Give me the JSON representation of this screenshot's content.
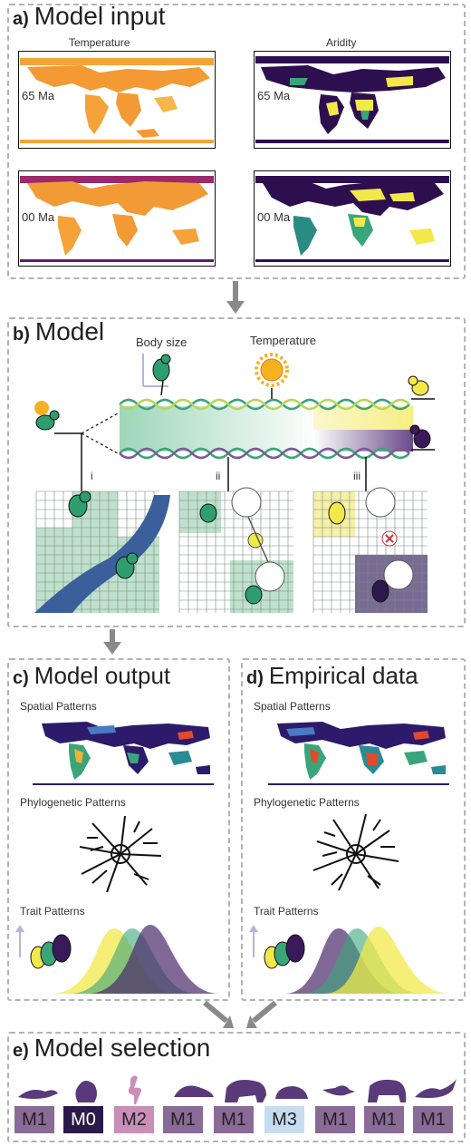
{
  "panel_a": {
    "letter": "a)",
    "title": "Model input",
    "col_left": "Temperature",
    "col_right": "Aridity",
    "time_top": "65 Ma",
    "time_bottom": "00 Ma"
  },
  "panel_b": {
    "letter": "b)",
    "title": "Model",
    "label_body_size": "Body size",
    "label_temperature": "Temperature",
    "roman": [
      "i",
      "ii",
      "iii"
    ]
  },
  "panel_c": {
    "letter": "c)",
    "title": "Model output",
    "spatial": "Spatial Patterns",
    "phylo": "Phylogenetic Patterns",
    "trait": "Trait Patterns"
  },
  "panel_d": {
    "letter": "d)",
    "title": "Empirical data",
    "spatial": "Spatial Patterns",
    "phylo": "Phylogenetic Patterns",
    "trait": "Trait Patterns"
  },
  "panel_e": {
    "letter": "e)",
    "title": "Model selection",
    "models": [
      {
        "label": "M1",
        "icon": "lizard-icon",
        "color": "#8a6a96"
      },
      {
        "label": "M0",
        "icon": "squirrel-icon",
        "color": "#2a1a4a"
      },
      {
        "label": "M2",
        "icon": "flamingo-icon",
        "color": "#c98fb8"
      },
      {
        "label": "M1",
        "icon": "turtle-icon",
        "color": "#8a6a96"
      },
      {
        "label": "M1",
        "icon": "elephant-icon",
        "color": "#8a6a96"
      },
      {
        "label": "M3",
        "icon": "rodent-icon",
        "color": "#c6dcf0"
      },
      {
        "label": "M1",
        "icon": "hummingbird-icon",
        "color": "#8a6a96"
      },
      {
        "label": "M1",
        "icon": "bear-icon",
        "color": "#8a6a96"
      },
      {
        "label": "M1",
        "icon": "gecko-icon",
        "color": "#8a6a96"
      }
    ]
  },
  "colors": {
    "yellow": "#f2e84a",
    "green": "#3aa57a",
    "purple": "#4a2a6a",
    "river": "#3a5f9a",
    "temp_map": "#f39a34",
    "aridity_dark": "#2d0f4f"
  }
}
